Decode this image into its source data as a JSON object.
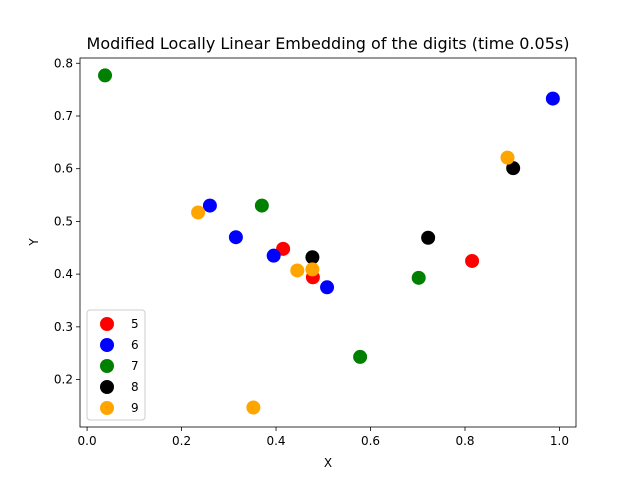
{
  "chart_data": {
    "type": "scatter",
    "title": "Modified Locally Linear Embedding of the digits (time 0.05s)",
    "xlabel": "X",
    "ylabel": "Y",
    "xlim": [
      -0.015,
      1.035
    ],
    "ylim": [
      0.11,
      0.81
    ],
    "xticks": [
      0.0,
      0.2,
      0.4,
      0.6,
      0.8,
      1.0
    ],
    "xtick_labels": [
      "0.0",
      "0.2",
      "0.4",
      "0.6",
      "0.8",
      "1.0"
    ],
    "yticks": [
      0.2,
      0.3,
      0.4,
      0.5,
      0.6,
      0.7,
      0.8
    ],
    "ytick_labels": [
      "0.2",
      "0.3",
      "0.4",
      "0.5",
      "0.6",
      "0.7",
      "0.8"
    ],
    "grid": false,
    "legend_position": "lower-left",
    "series": [
      {
        "name": "5",
        "color": "#ff0000",
        "points": [
          [
            0.415,
            0.448
          ],
          [
            0.478,
            0.394
          ],
          [
            0.815,
            0.425
          ]
        ]
      },
      {
        "name": "6",
        "color": "#0000ff",
        "points": [
          [
            0.26,
            0.53
          ],
          [
            0.315,
            0.47
          ],
          [
            0.395,
            0.435
          ],
          [
            0.508,
            0.375
          ],
          [
            0.986,
            0.733
          ]
        ]
      },
      {
        "name": "7",
        "color": "#008000",
        "points": [
          [
            0.038,
            0.777
          ],
          [
            0.37,
            0.53
          ],
          [
            0.578,
            0.243
          ],
          [
            0.702,
            0.393
          ]
        ]
      },
      {
        "name": "8",
        "color": "#000000",
        "points": [
          [
            0.477,
            0.432
          ],
          [
            0.722,
            0.469
          ],
          [
            0.902,
            0.601
          ]
        ]
      },
      {
        "name": "9",
        "color": "#ffa500",
        "points": [
          [
            0.235,
            0.517
          ],
          [
            0.352,
            0.147
          ],
          [
            0.445,
            0.407
          ],
          [
            0.477,
            0.409
          ],
          [
            0.89,
            0.621
          ]
        ]
      }
    ]
  }
}
